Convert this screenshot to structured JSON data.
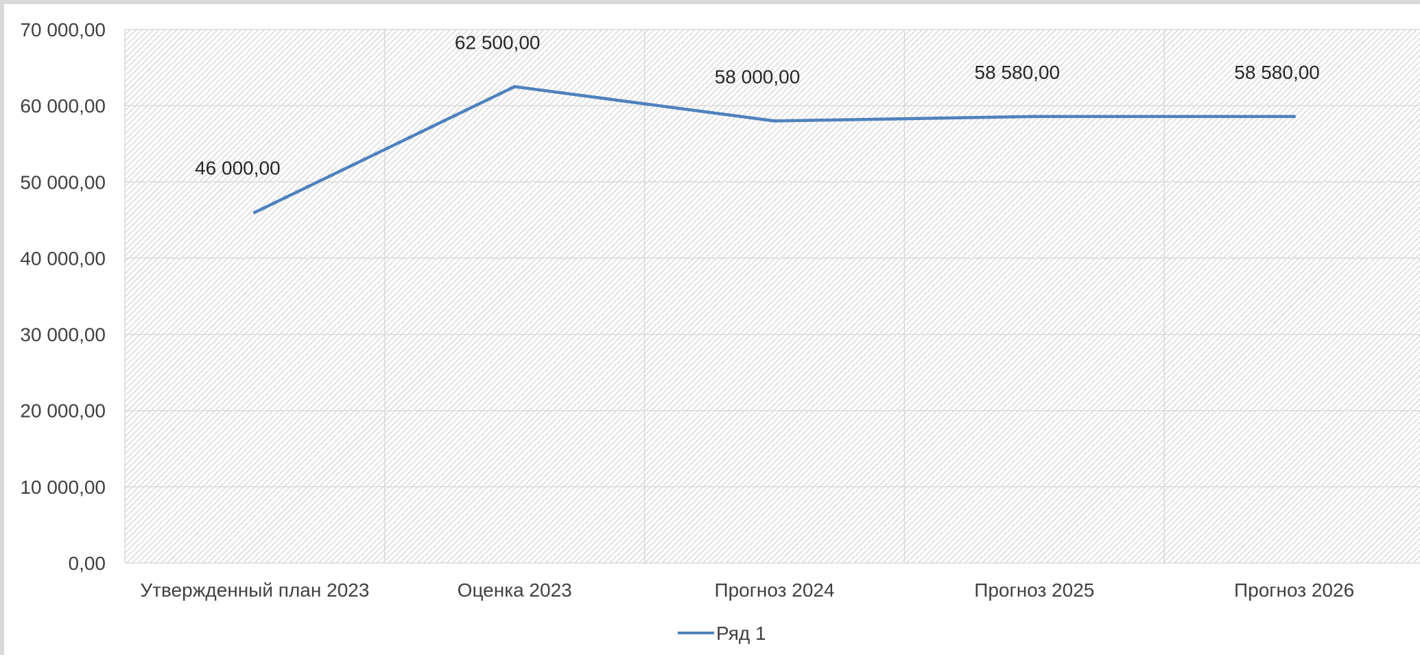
{
  "chart_data": {
    "type": "line",
    "title": "",
    "xlabel": "",
    "ylabel": "",
    "categories": [
      "Утвержденный план 2023",
      "Оценка 2023",
      "Прогноз 2024",
      "Прогноз 2025",
      "Прогноз 2026"
    ],
    "series": [
      {
        "name": "Ряд 1",
        "values": [
          46000,
          62500,
          58000,
          58580,
          58580
        ],
        "data_labels": [
          "46 000,00",
          "62 500,00",
          "58 000,00",
          "58 580,00",
          "58 580,00"
        ],
        "color": "#4f81bd"
      }
    ],
    "ylim": [
      0,
      70000
    ],
    "y_ticks": [
      0,
      10000,
      20000,
      30000,
      40000,
      50000,
      60000,
      70000
    ],
    "y_tick_labels": [
      "0,00",
      "10 000,00",
      "20 000,00",
      "30 000,00",
      "40 000,00",
      "50 000,00",
      "60 000,00",
      "70 000,00"
    ],
    "grid": true,
    "plot_fill": "diagonal-hatch",
    "legend_position": "bottom"
  },
  "colors": {
    "line": "#4f81bd",
    "frame": "#d9d9d9",
    "hatch": "#c8c8c8",
    "grid": "#d9d9d9"
  }
}
